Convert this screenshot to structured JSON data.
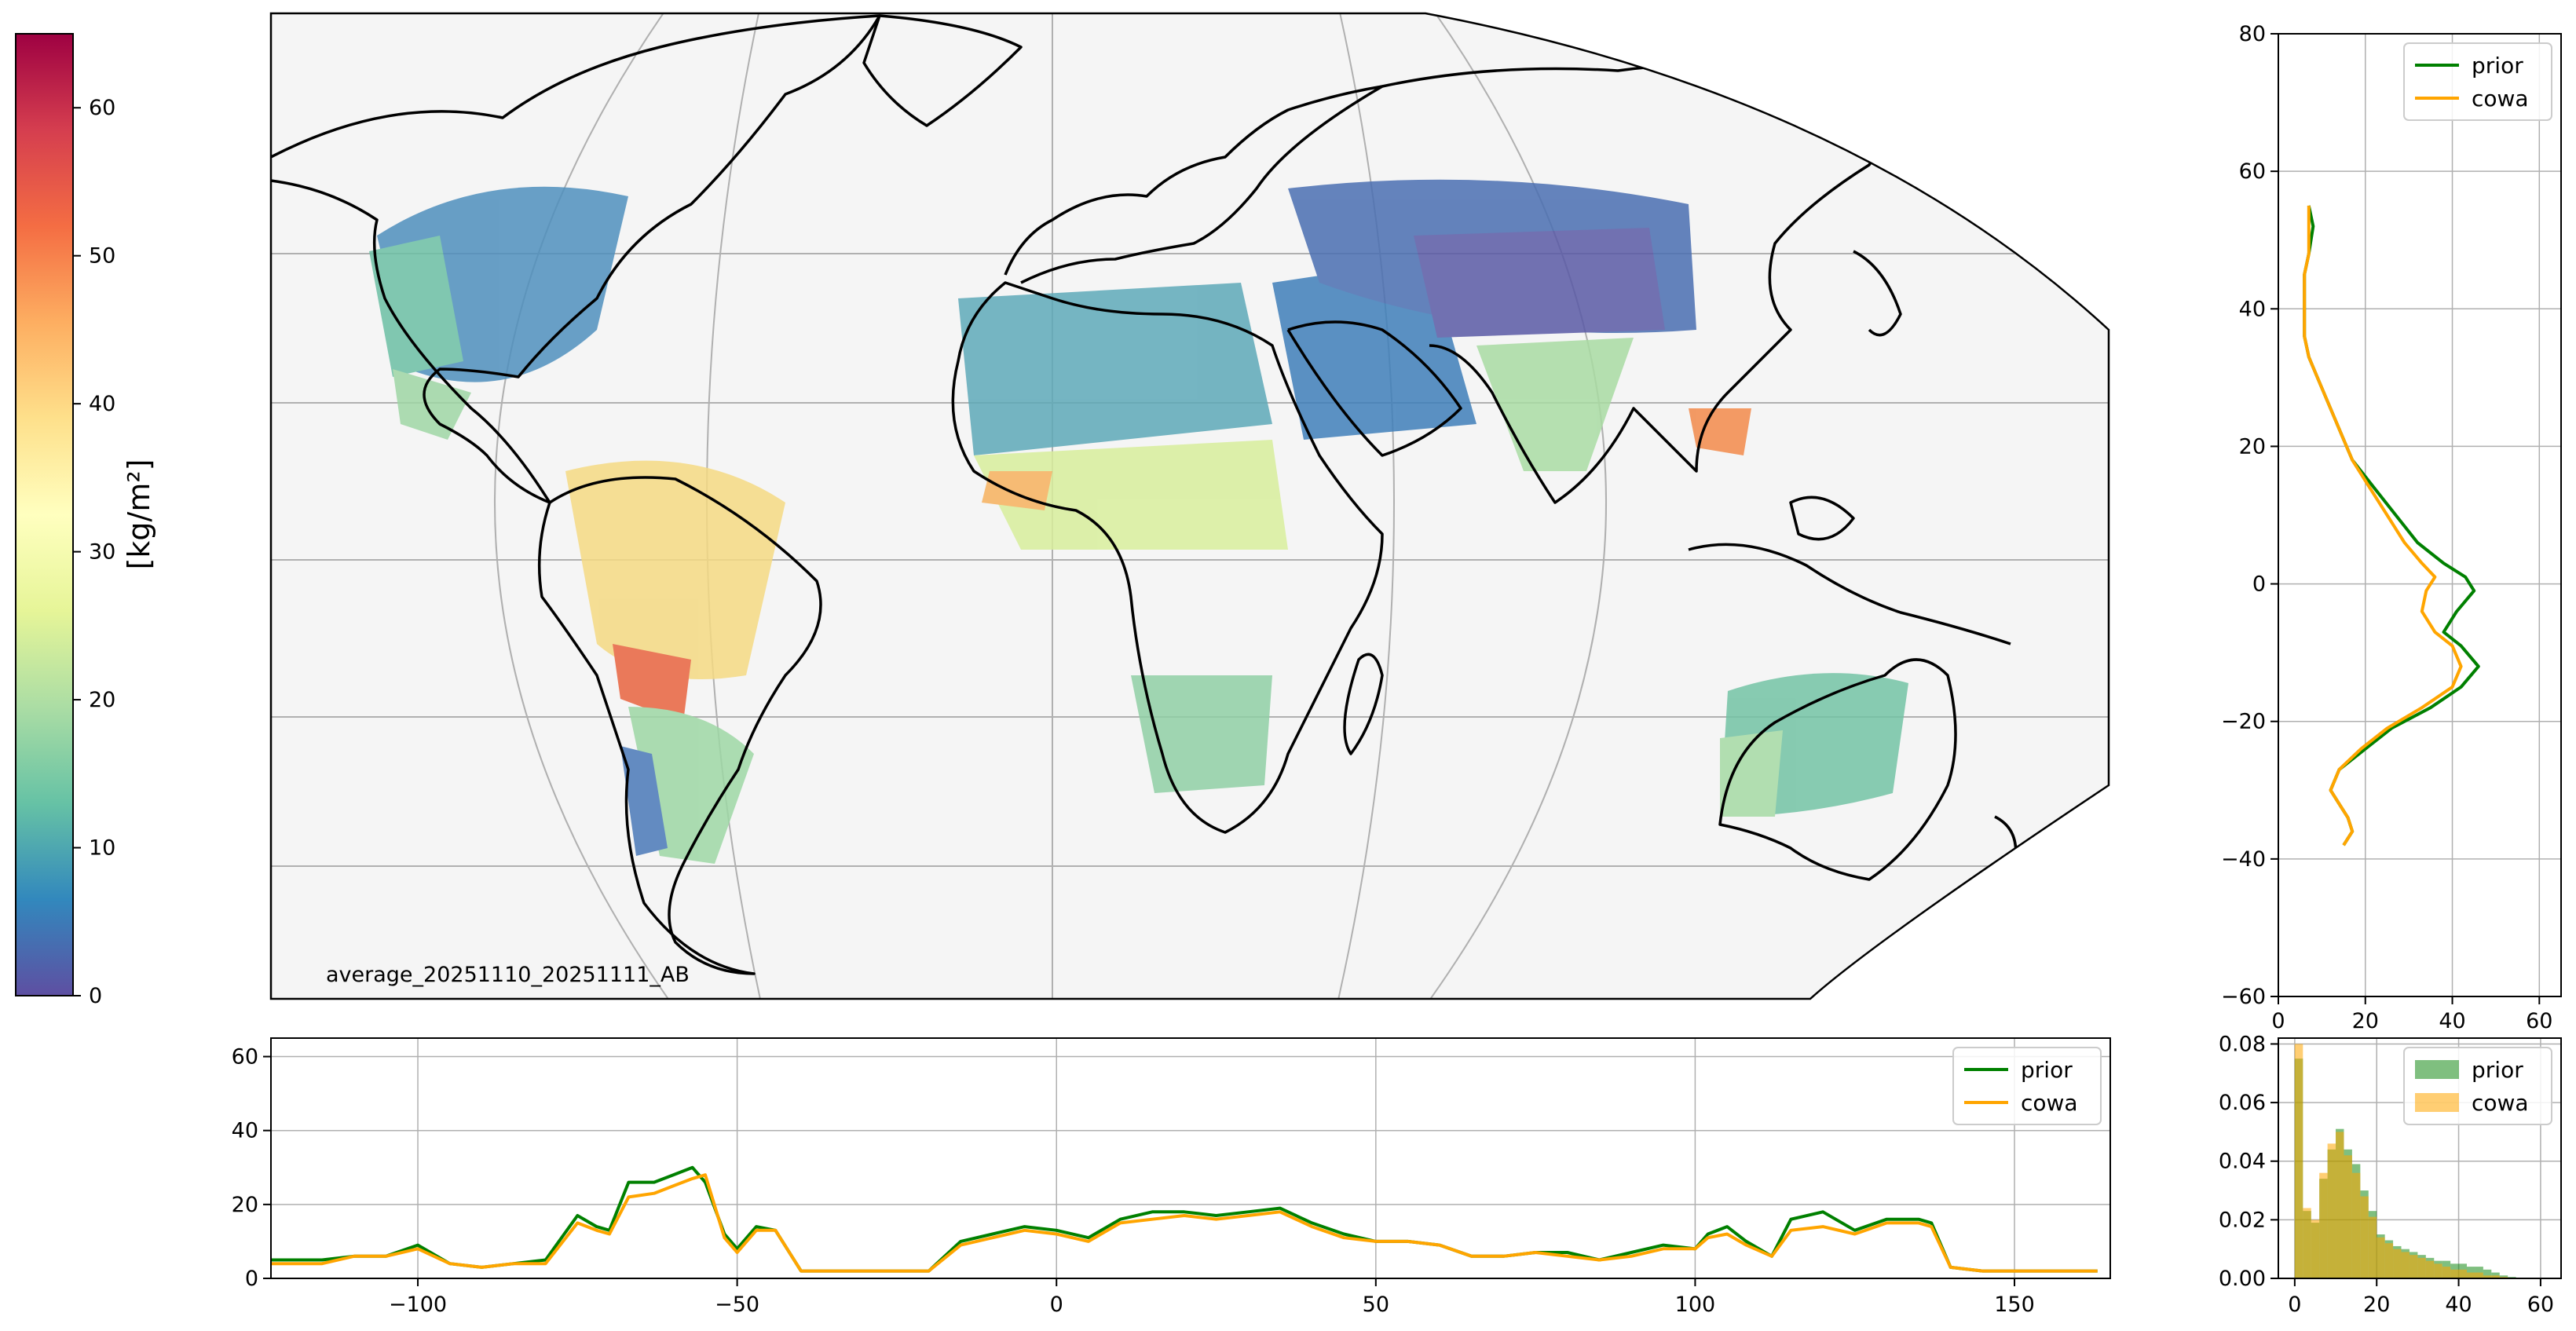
{
  "colorbar": {
    "label": "[kg/m²]",
    "ticks": [
      "0",
      "10",
      "20",
      "30",
      "40",
      "50",
      "60"
    ],
    "range": [
      0,
      65
    ],
    "cmap_stops": [
      "#5e4fa2",
      "#3288bd",
      "#66c2a5",
      "#abdda4",
      "#e6f598",
      "#ffffbf",
      "#fee08b",
      "#fdae61",
      "#f46d43",
      "#d53e4f",
      "#9e0142"
    ]
  },
  "map": {
    "annotation": "average_20251110_20251111_AB",
    "projection": "robinson",
    "background": "#f5f5f5",
    "graticule_color": "#b0b0b0",
    "coast_color": "#000000"
  },
  "chart_data": [
    {
      "type": "line",
      "panel": "latitude-profile",
      "orientation": "vertical",
      "xlim": [
        0,
        65
      ],
      "ylim": [
        -60,
        80
      ],
      "xticks": [
        "0",
        "20",
        "40",
        "60"
      ],
      "yticks": [
        "−60",
        "−40",
        "−20",
        "0",
        "20",
        "40",
        "60",
        "80"
      ],
      "grid": true,
      "legend": "top-right",
      "series": [
        {
          "name": "prior",
          "color": "#008000",
          "x": [
            7,
            8,
            7,
            6,
            6,
            6,
            6,
            7,
            9,
            11,
            13,
            15,
            17,
            22,
            27,
            32,
            38,
            43,
            45,
            41,
            38,
            42,
            46,
            42,
            35,
            26,
            20,
            14,
            12,
            14,
            16,
            17,
            15
          ],
          "y": [
            55,
            52,
            48,
            45,
            42,
            40,
            36,
            33,
            30,
            27,
            24,
            21,
            18,
            14,
            10,
            6,
            3,
            1,
            -1,
            -4,
            -7,
            -9,
            -12,
            -15,
            -18,
            -21,
            -24,
            -27,
            -30,
            -32,
            -34,
            -36,
            -38
          ]
        },
        {
          "name": "cowa",
          "color": "#ffa500",
          "x": [
            7,
            7,
            7,
            6,
            6,
            6,
            6,
            7,
            9,
            11,
            13,
            15,
            17,
            21,
            25,
            29,
            33,
            36,
            34,
            33,
            36,
            40,
            42,
            40,
            33,
            25,
            19,
            14,
            12,
            14,
            16,
            17,
            15
          ],
          "y": [
            55,
            52,
            48,
            45,
            42,
            40,
            36,
            33,
            30,
            27,
            24,
            21,
            18,
            14,
            10,
            6,
            3,
            1,
            -1,
            -4,
            -7,
            -9,
            -12,
            -15,
            -18,
            -21,
            -24,
            -27,
            -30,
            -32,
            -34,
            -36,
            -38
          ]
        }
      ]
    },
    {
      "type": "line",
      "panel": "longitude-profile",
      "xlim": [
        -123,
        165
      ],
      "ylim": [
        0,
        65
      ],
      "xticks": [
        "−100",
        "−50",
        "0",
        "50",
        "100",
        "150"
      ],
      "yticks": [
        "0",
        "20",
        "40",
        "60"
      ],
      "grid": true,
      "legend": "top-right",
      "series": [
        {
          "name": "prior",
          "color": "#008000",
          "x": [
            -123,
            -115,
            -110,
            -105,
            -100,
            -95,
            -90,
            -85,
            -80,
            -75,
            -72,
            -70,
            -67,
            -63,
            -60,
            -57,
            -55,
            -52,
            -50,
            -47,
            -44,
            -40,
            -35,
            -30,
            -25,
            -20,
            -15,
            -10,
            -5,
            0,
            5,
            10,
            15,
            20,
            25,
            30,
            35,
            40,
            45,
            50,
            55,
            60,
            65,
            70,
            75,
            80,
            85,
            90,
            95,
            100,
            102,
            105,
            108,
            112,
            115,
            120,
            125,
            130,
            135,
            137,
            140,
            145,
            150,
            155,
            160,
            163
          ],
          "y": [
            5,
            5,
            6,
            6,
            9,
            4,
            3,
            4,
            5,
            17,
            14,
            13,
            26,
            26,
            28,
            30,
            26,
            12,
            8,
            14,
            13,
            2,
            2,
            2,
            2,
            2,
            10,
            12,
            14,
            13,
            11,
            16,
            18,
            18,
            17,
            18,
            19,
            15,
            12,
            10,
            10,
            9,
            6,
            6,
            7,
            7,
            5,
            7,
            9,
            8,
            12,
            14,
            10,
            6,
            16,
            18,
            13,
            16,
            16,
            15,
            3,
            2,
            2,
            2,
            2,
            2
          ]
        },
        {
          "name": "cowa",
          "color": "#ffa500",
          "x": [
            -123,
            -115,
            -110,
            -105,
            -100,
            -95,
            -90,
            -85,
            -80,
            -75,
            -72,
            -70,
            -67,
            -63,
            -60,
            -57,
            -55,
            -52,
            -50,
            -47,
            -44,
            -40,
            -35,
            -30,
            -25,
            -20,
            -15,
            -10,
            -5,
            0,
            5,
            10,
            15,
            20,
            25,
            30,
            35,
            40,
            45,
            50,
            55,
            60,
            65,
            70,
            75,
            80,
            85,
            90,
            95,
            100,
            102,
            105,
            108,
            112,
            115,
            120,
            125,
            130,
            135,
            137,
            140,
            145,
            150,
            155,
            160,
            163
          ],
          "y": [
            4,
            4,
            6,
            6,
            8,
            4,
            3,
            4,
            4,
            15,
            13,
            12,
            22,
            23,
            25,
            27,
            28,
            11,
            7,
            13,
            13,
            2,
            2,
            2,
            2,
            2,
            9,
            11,
            13,
            12,
            10,
            15,
            16,
            17,
            16,
            17,
            18,
            14,
            11,
            10,
            10,
            9,
            6,
            6,
            7,
            6,
            5,
            6,
            8,
            8,
            11,
            12,
            9,
            6,
            13,
            14,
            12,
            15,
            15,
            14,
            3,
            2,
            2,
            2,
            2,
            2
          ]
        }
      ]
    },
    {
      "type": "bar",
      "panel": "histogram",
      "xlim": [
        -4,
        65
      ],
      "ylim": [
        0,
        0.082
      ],
      "xticks": [
        "0",
        "20",
        "40",
        "60"
      ],
      "yticks": [
        "0.00",
        "0.02",
        "0.04",
        "0.06",
        "0.08"
      ],
      "grid": true,
      "legend": "top-right",
      "bin_edges": [
        0,
        2,
        4,
        6,
        8,
        10,
        12,
        14,
        16,
        18,
        20,
        22,
        24,
        26,
        28,
        30,
        32,
        34,
        36,
        38,
        40,
        42,
        44,
        46,
        48,
        50,
        52,
        54
      ],
      "series": [
        {
          "name": "prior",
          "color": "#008000",
          "opacity": 0.5,
          "values": [
            0.075,
            0.023,
            0.019,
            0.034,
            0.044,
            0.051,
            0.044,
            0.039,
            0.03,
            0.023,
            0.015,
            0.013,
            0.011,
            0.01,
            0.009,
            0.008,
            0.007,
            0.006,
            0.006,
            0.005,
            0.005,
            0.004,
            0.004,
            0.003,
            0.002,
            0.001,
            0.0005
          ]
        },
        {
          "name": "cowa",
          "color": "#ffa500",
          "opacity": 0.55,
          "values": [
            0.08,
            0.024,
            0.02,
            0.036,
            0.046,
            0.05,
            0.042,
            0.036,
            0.028,
            0.021,
            0.014,
            0.012,
            0.01,
            0.009,
            0.008,
            0.007,
            0.006,
            0.005,
            0.004,
            0.003,
            0.003,
            0.002,
            0.002,
            0.001,
            0.001,
            0.0005,
            0.0002
          ]
        }
      ]
    }
  ]
}
